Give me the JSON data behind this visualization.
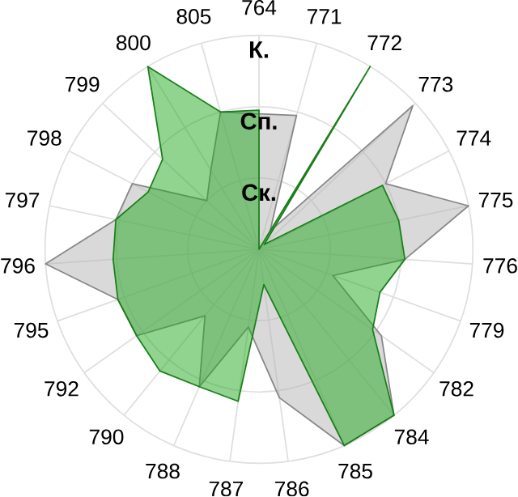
{
  "chart_data": {
    "type": "radar",
    "categories": [
      "764",
      "771",
      "772",
      "773",
      "774",
      "775",
      "776",
      "779",
      "782",
      "784",
      "785",
      "786",
      "787",
      "788",
      "790",
      "792",
      "795",
      "796",
      "797",
      "798",
      "799",
      "800",
      "805"
    ],
    "ylim": [
      0,
      3
    ],
    "yticks": [
      {
        "value": 1,
        "label": "Ск."
      },
      {
        "value": 2,
        "label": "Сп."
      },
      {
        "value": 3,
        "label": "К."
      }
    ],
    "grid": true,
    "series": [
      {
        "color": "#b4b4b4",
        "values": [
          1.9,
          1.95,
          0.3,
          2.95,
          2.0,
          3.0,
          2.05,
          1.1,
          2.1,
          3.0,
          3.0,
          2.1,
          1.1,
          2.1,
          1.2,
          2.1,
          2.1,
          3.0,
          2.05,
          2.0,
          1.0,
          1.3,
          2.0
        ]
      },
      {
        "color": "#21a921",
        "values": [
          1.95,
          0,
          3.0,
          0.1,
          1.95,
          2.0,
          2.05,
          1.8,
          1.95,
          3.0,
          3.0,
          0.5,
          2.15,
          2.1,
          2.2,
          2.1,
          2.1,
          2.05,
          2.05,
          1.75,
          1.85,
          3.0,
          2.0
        ]
      }
    ]
  }
}
